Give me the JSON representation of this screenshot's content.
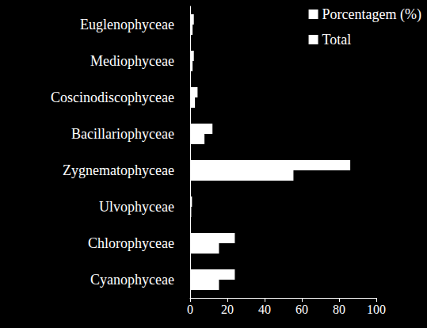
{
  "chart_data": {
    "type": "bar",
    "orientation": "horizontal",
    "categories": [
      "Cyanophyceae",
      "Chlorophyceae",
      "Ulvophyceae",
      "Zygnematophyceae",
      "Bacillariophyceae",
      "Coscinodiscophyceae",
      "Mediophyceae",
      "Euglenophyceae"
    ],
    "series": [
      {
        "name": "Porcentagem (%)",
        "color": "#ffffff",
        "values": [
          15.5,
          15.5,
          0.6,
          55.5,
          7.7,
          2.6,
          1.3,
          1.3
        ]
      },
      {
        "name": "Total",
        "color": "#ffffff",
        "values": [
          24,
          24,
          1,
          86,
          12,
          4,
          2,
          2
        ]
      }
    ],
    "xlim": [
      0,
      100
    ],
    "xticks": [
      0,
      20,
      40,
      60,
      80,
      100
    ],
    "grid": false,
    "legend": "top-right"
  }
}
